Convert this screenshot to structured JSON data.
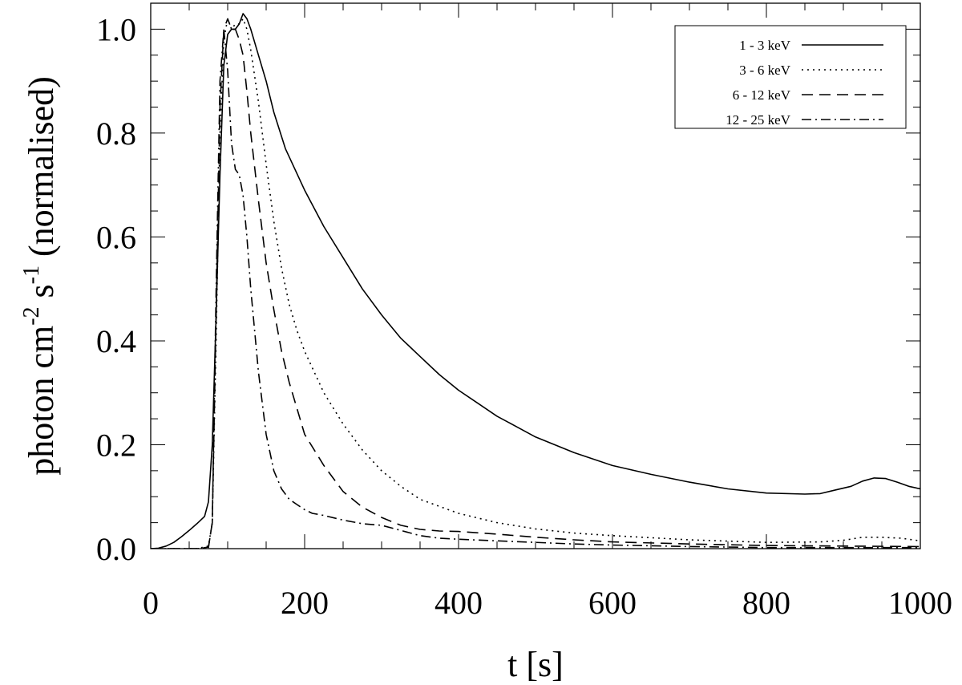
{
  "chart_data": {
    "type": "line",
    "title": "",
    "xlabel": "t  [s]",
    "ylabel": {
      "main": "photon cm",
      "sup1": "-2",
      "mid": " s",
      "sup2": "-1",
      "tail": " (normalised)"
    },
    "xlim": [
      0,
      1000
    ],
    "ylim": [
      0,
      1.05
    ],
    "x_ticks": [
      0,
      200,
      400,
      600,
      800,
      1000
    ],
    "x_tick_labels": [
      "0",
      "200",
      "400",
      "600",
      "800",
      "1000"
    ],
    "y_ticks": [
      0,
      0.2,
      0.4,
      0.6,
      0.8,
      1.0
    ],
    "y_tick_labels": [
      "0.0",
      "0.2",
      "0.4",
      "0.6",
      "0.8",
      "1.0"
    ],
    "grid": false,
    "legend_position": "top-right",
    "series": [
      {
        "name": "1 - 3 keV",
        "style": "solid",
        "x": [
          0,
          10,
          20,
          30,
          40,
          50,
          60,
          70,
          75,
          80,
          85,
          90,
          95,
          100,
          105,
          110,
          115,
          120,
          125,
          130,
          140,
          150,
          160,
          175,
          200,
          225,
          250,
          275,
          300,
          325,
          350,
          375,
          400,
          425,
          450,
          475,
          500,
          550,
          600,
          650,
          700,
          750,
          800,
          850,
          870,
          890,
          910,
          925,
          940,
          955,
          970,
          985,
          1000
        ],
        "y": [
          0.0,
          0.001,
          0.005,
          0.012,
          0.023,
          0.035,
          0.048,
          0.062,
          0.09,
          0.2,
          0.45,
          0.72,
          0.93,
          0.99,
          1.0,
          1.0,
          1.01,
          1.03,
          1.02,
          1.0,
          0.95,
          0.9,
          0.84,
          0.77,
          0.69,
          0.62,
          0.56,
          0.5,
          0.45,
          0.405,
          0.37,
          0.335,
          0.305,
          0.28,
          0.255,
          0.235,
          0.215,
          0.185,
          0.16,
          0.143,
          0.128,
          0.115,
          0.107,
          0.105,
          0.106,
          0.113,
          0.12,
          0.13,
          0.136,
          0.135,
          0.128,
          0.12,
          0.115
        ]
      },
      {
        "name": "3 - 6 keV",
        "style": "dotted",
        "x": [
          0,
          20,
          40,
          60,
          75,
          80,
          85,
          90,
          95,
          100,
          105,
          110,
          115,
          120,
          125,
          130,
          140,
          150,
          160,
          170,
          180,
          190,
          200,
          225,
          250,
          275,
          300,
          325,
          350,
          400,
          450,
          500,
          550,
          600,
          700,
          800,
          870,
          900,
          925,
          950,
          975,
          1000
        ],
        "y": [
          0,
          0,
          0,
          0,
          0.005,
          0.05,
          0.4,
          0.8,
          0.98,
          1.02,
          1.0,
          1.01,
          1.01,
          1.02,
          1.0,
          0.96,
          0.86,
          0.74,
          0.63,
          0.54,
          0.47,
          0.42,
          0.38,
          0.3,
          0.24,
          0.19,
          0.15,
          0.12,
          0.095,
          0.068,
          0.05,
          0.038,
          0.03,
          0.025,
          0.017,
          0.012,
          0.013,
          0.016,
          0.022,
          0.022,
          0.02,
          0.015
        ]
      },
      {
        "name": "6 - 12 keV",
        "style": "dashed",
        "x": [
          0,
          20,
          40,
          60,
          75,
          80,
          85,
          90,
          95,
          100,
          105,
          110,
          115,
          120,
          125,
          130,
          140,
          150,
          160,
          170,
          180,
          190,
          200,
          225,
          250,
          275,
          300,
          325,
          350,
          375,
          400,
          450,
          500,
          550,
          600,
          700,
          800,
          900,
          1000
        ],
        "y": [
          0,
          0,
          0,
          0,
          0.003,
          0.05,
          0.45,
          0.85,
          1.0,
          1.02,
          1.0,
          1.0,
          0.98,
          0.95,
          0.88,
          0.8,
          0.67,
          0.55,
          0.46,
          0.38,
          0.32,
          0.27,
          0.22,
          0.16,
          0.11,
          0.08,
          0.06,
          0.045,
          0.037,
          0.034,
          0.033,
          0.028,
          0.022,
          0.017,
          0.013,
          0.009,
          0.006,
          0.005,
          0.004
        ]
      },
      {
        "name": "12 - 25 keV",
        "style": "dashdot",
        "x": [
          0,
          20,
          40,
          60,
          75,
          80,
          85,
          90,
          95,
          100,
          105,
          110,
          115,
          120,
          125,
          130,
          140,
          150,
          160,
          170,
          180,
          190,
          200,
          210,
          225,
          250,
          275,
          300,
          325,
          350,
          375,
          400,
          450,
          500,
          550,
          600,
          700,
          800,
          900,
          1000
        ],
        "y": [
          0,
          0,
          0,
          0,
          0.002,
          0.05,
          0.5,
          0.9,
          1.0,
          0.92,
          0.78,
          0.73,
          0.72,
          0.68,
          0.6,
          0.5,
          0.34,
          0.22,
          0.15,
          0.115,
          0.095,
          0.085,
          0.075,
          0.068,
          0.064,
          0.055,
          0.048,
          0.045,
          0.035,
          0.025,
          0.02,
          0.018,
          0.015,
          0.012,
          0.009,
          0.007,
          0.004,
          0.002,
          0.002,
          0.002
        ]
      }
    ]
  }
}
